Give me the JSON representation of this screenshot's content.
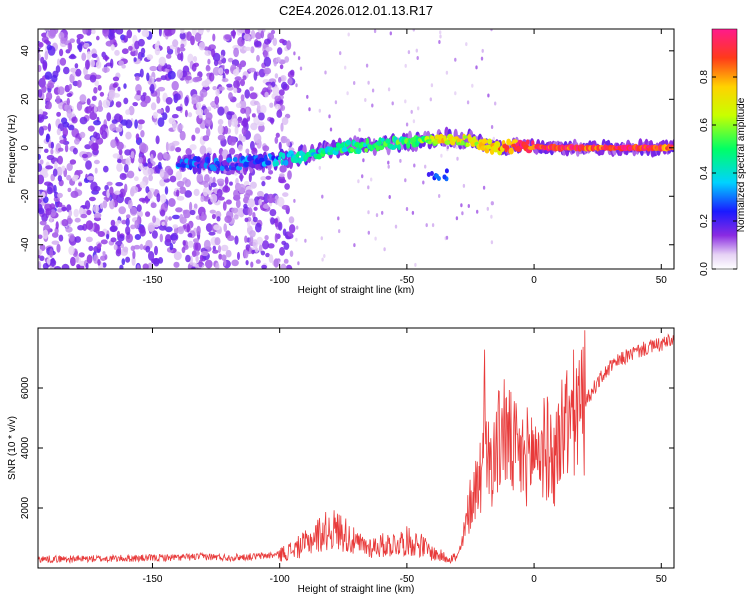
{
  "title": "C2E4.2026.012.01.13.R17",
  "colors": {
    "line": "#e83a3a",
    "axis": "#000000"
  },
  "chart_data": [
    {
      "type": "heatmap",
      "title": "C2E4.2026.012.01.13.R17",
      "xlabel": "Height of straight line (km)",
      "ylabel": "Frequency (Hz)",
      "xlim": [
        -195,
        55
      ],
      "ylim": [
        -50,
        49
      ],
      "xticks": [
        -150,
        -100,
        -50,
        0,
        50
      ],
      "yticks": [
        -40,
        -20,
        0,
        20,
        40
      ],
      "colorbar": {
        "label": "Normalized spectral amplitude",
        "range": [
          0,
          1
        ],
        "ticks": [
          0.0,
          0.2,
          0.4,
          0.6,
          0.8
        ]
      },
      "signal_track": [
        {
          "x": -140,
          "f": -6,
          "amp": 0.25
        },
        {
          "x": -120,
          "f": -7,
          "amp": 0.22
        },
        {
          "x": -105,
          "f": -5,
          "amp": 0.3
        },
        {
          "x": -95,
          "f": -4,
          "amp": 0.38
        },
        {
          "x": -85,
          "f": -2,
          "amp": 0.42
        },
        {
          "x": -75,
          "f": 0,
          "amp": 0.45
        },
        {
          "x": -65,
          "f": 1,
          "amp": 0.48
        },
        {
          "x": -55,
          "f": 2,
          "amp": 0.5
        },
        {
          "x": -45,
          "f": 3,
          "amp": 0.55
        },
        {
          "x": -35,
          "f": 4,
          "amp": 0.7
        },
        {
          "x": -25,
          "f": 3,
          "amp": 0.65
        },
        {
          "x": -15,
          "f": 0,
          "amp": 0.75
        },
        {
          "x": -5,
          "f": 1,
          "amp": 0.9
        },
        {
          "x": 5,
          "f": 0,
          "amp": 0.92
        },
        {
          "x": 15,
          "f": 0,
          "amp": 0.9
        },
        {
          "x": 25,
          "f": 0,
          "amp": 0.88
        },
        {
          "x": 35,
          "f": 0,
          "amp": 0.95
        },
        {
          "x": 45,
          "f": 0,
          "amp": 0.92
        },
        {
          "x": 55,
          "f": 0,
          "amp": 0.85
        }
      ]
    },
    {
      "type": "line",
      "xlabel": "Height of straight line (km)",
      "ylabel": "SNR (10 * v/v)",
      "xlim": [
        -195,
        55
      ],
      "ylim": [
        0,
        8000
      ],
      "xticks": [
        -150,
        -100,
        -50,
        0,
        50
      ],
      "yticks": [
        2000,
        4000,
        6000
      ],
      "series": [
        {
          "name": "SNR",
          "x": [
            -195,
            -180,
            -160,
            -140,
            -130,
            -120,
            -110,
            -100,
            -95,
            -90,
            -85,
            -80,
            -75,
            -70,
            -65,
            -60,
            -55,
            -50,
            -45,
            -40,
            -35,
            -30,
            -28,
            -25,
            -20,
            -15,
            -12,
            -10,
            -5,
            0,
            5,
            8,
            10,
            15,
            20,
            25,
            30,
            35,
            40,
            45,
            50,
            55
          ],
          "y": [
            300,
            300,
            320,
            350,
            380,
            350,
            380,
            450,
            600,
            800,
            1100,
            1300,
            1200,
            800,
            700,
            750,
            800,
            900,
            800,
            500,
            350,
            350,
            900,
            2200,
            3500,
            3800,
            4800,
            4200,
            3600,
            3900,
            4000,
            3500,
            4500,
            5000,
            5500,
            6200,
            6700,
            7000,
            7200,
            7350,
            7450,
            7600
          ]
        }
      ]
    }
  ]
}
